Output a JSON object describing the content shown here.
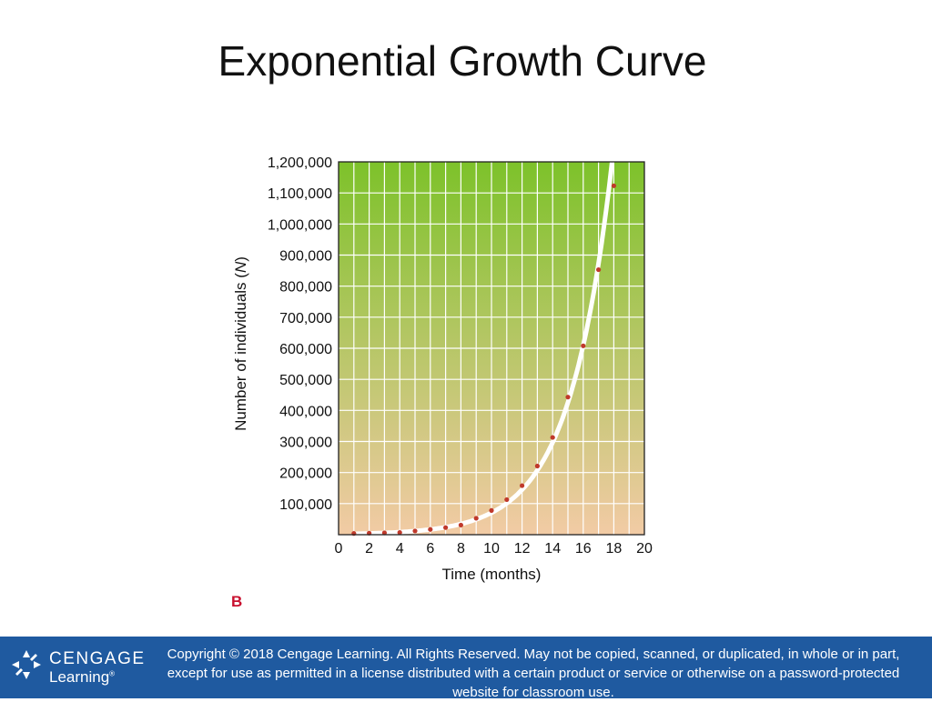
{
  "slide": {
    "title": "Exponential Growth Curve",
    "figure_letter": "B"
  },
  "footer": {
    "logo_word1": "CENGAGE",
    "logo_word2": "Learning",
    "logo_mark": "®",
    "copyright": "Copyright © 2018 Cengage Learning. All Rights Reserved. May not be copied, scanned, or duplicated, in whole or in part, except for use as permitted in a license distributed with a certain product or service or otherwise on a password-protected website for classroom use.",
    "background_color": "#1f5aa0"
  },
  "chart_data": {
    "type": "line",
    "title": "",
    "xlabel": "Time (months)",
    "ylabel": "Number of individuals (N)",
    "ylabel_italic_part": "N",
    "xlim": [
      0,
      20
    ],
    "ylim": [
      0,
      1200000
    ],
    "x_ticks": [
      "0",
      "2",
      "4",
      "6",
      "8",
      "10",
      "12",
      "14",
      "16",
      "18",
      "20"
    ],
    "y_ticks": [
      "100,000",
      "200,000",
      "300,000",
      "400,000",
      "500,000",
      "600,000",
      "700,000",
      "800,000",
      "900,000",
      "1,000,000",
      "1,100,000",
      "1,200,000"
    ],
    "grid": true,
    "background_gradient": [
      "#7dc22a",
      "#f2cba5"
    ],
    "curve_color": "#ffffff",
    "point_color": "#c0392b",
    "points": {
      "x": [
        1,
        2,
        3,
        4,
        5,
        6,
        7,
        8,
        9,
        10,
        11,
        12,
        13,
        14,
        15,
        16,
        17,
        18
      ],
      "y": [
        1000,
        2000,
        3000,
        4000,
        9000,
        14000,
        20000,
        28000,
        50000,
        75000,
        110000,
        155000,
        218000,
        310000,
        440000,
        605000,
        850000,
        1120000
      ]
    }
  }
}
